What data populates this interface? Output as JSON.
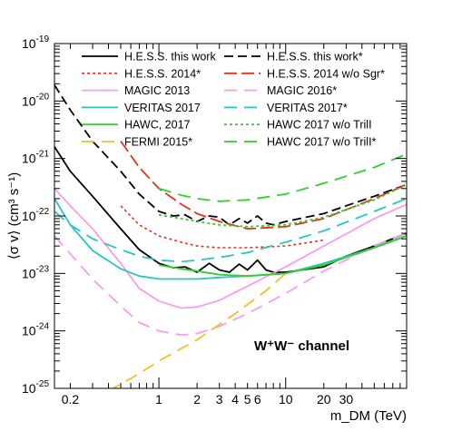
{
  "chart_data": {
    "type": "line",
    "title": "",
    "xlabel": "m_DM (TeV)",
    "ylabel": "⟨σ v⟩ (cm³ s⁻¹)",
    "x_scale": "log",
    "y_scale": "log",
    "xlim": [
      0.15,
      90
    ],
    "ylim": [
      1e-25,
      1e-19
    ],
    "grid": false,
    "legend_position": "top",
    "x_tick_labels": [
      {
        "value": 0.2,
        "label": "0.2"
      },
      {
        "value": 1,
        "label": "1"
      },
      {
        "value": 2,
        "label": "2"
      },
      {
        "value": 3,
        "label": "3"
      },
      {
        "value": 4,
        "label": "4"
      },
      {
        "value": 5,
        "label": "5"
      },
      {
        "value": 6,
        "label": "6"
      },
      {
        "value": 10,
        "label": "10"
      },
      {
        "value": 20,
        "label": "20"
      },
      {
        "value": 30,
        "label": "30"
      }
    ],
    "y_tick_labels": [
      {
        "value": 1e-25,
        "base": "10",
        "exp": "-25"
      },
      {
        "value": 1e-24,
        "base": "10",
        "exp": "-24"
      },
      {
        "value": 1e-23,
        "base": "10",
        "exp": "-23"
      },
      {
        "value": 1e-22,
        "base": "10",
        "exp": "-22"
      },
      {
        "value": 1e-21,
        "base": "10",
        "exp": "-21"
      },
      {
        "value": 1e-20,
        "base": "10",
        "exp": "-20"
      },
      {
        "value": 1e-19,
        "base": "10",
        "exp": "-19"
      }
    ],
    "annotation": "W⁺W⁻ channel",
    "series": [
      {
        "name": "H.E.S.S. this work",
        "color": "#000000",
        "dash": "solid",
        "width": 1.8,
        "points": [
          [
            0.15,
            1.6e-21
          ],
          [
            0.2,
            6e-22
          ],
          [
            0.3,
            2.2e-22
          ],
          [
            0.5,
            6e-23
          ],
          [
            0.7,
            2.6e-23
          ],
          [
            1,
            1.5e-23
          ],
          [
            1.3,
            1.25e-23
          ],
          [
            1.6,
            1.3e-23
          ],
          [
            2,
            1.05e-23
          ],
          [
            2.5,
            1.5e-23
          ],
          [
            3,
            1.15e-23
          ],
          [
            3.6,
            1.05e-23
          ],
          [
            4.3,
            1.45e-23
          ],
          [
            5,
            1.15e-23
          ],
          [
            6,
            1.7e-23
          ],
          [
            7,
            1.15e-23
          ],
          [
            8,
            1.05e-23
          ],
          [
            10,
            1.05e-23
          ],
          [
            20,
            1.3e-23
          ],
          [
            30,
            2e-23
          ],
          [
            50,
            3e-23
          ],
          [
            90,
            5e-23
          ]
        ]
      },
      {
        "name": "H.E.S.S. this work*",
        "color": "#000000",
        "dash": "10,5",
        "width": 1.8,
        "points": [
          [
            0.15,
            1.9e-20
          ],
          [
            0.2,
            7e-21
          ],
          [
            0.3,
            2e-21
          ],
          [
            0.5,
            6e-22
          ],
          [
            0.7,
            2.4e-22
          ],
          [
            1,
            1.2e-22
          ],
          [
            1.3,
            1e-22
          ],
          [
            1.6,
            1.05e-22
          ],
          [
            2,
            8e-23
          ],
          [
            2.5,
            1e-22
          ],
          [
            3,
            9.5e-23
          ],
          [
            3.6,
            7e-23
          ],
          [
            4.3,
            9e-23
          ],
          [
            5,
            7.5e-23
          ],
          [
            6,
            1e-22
          ],
          [
            7,
            7.5e-23
          ],
          [
            8,
            7e-23
          ],
          [
            10,
            8e-23
          ],
          [
            20,
            1.1e-22
          ],
          [
            30,
            1.5e-22
          ],
          [
            50,
            2.2e-22
          ],
          [
            90,
            3.5e-22
          ]
        ]
      },
      {
        "name": "H.E.S.S. 2014*",
        "color": "#e8301c",
        "dash": "3,3",
        "width": 1.6,
        "points": [
          [
            0.5,
            1.5e-22
          ],
          [
            0.7,
            7e-23
          ],
          [
            1,
            4.5e-23
          ],
          [
            1.5,
            3.5e-23
          ],
          [
            2,
            3e-23
          ],
          [
            3,
            2.8e-23
          ],
          [
            5,
            2.8e-23
          ],
          [
            10,
            3e-23
          ],
          [
            20,
            3.8e-23
          ]
        ]
      },
      {
        "name": "H.E.S.S. 2014 w/o Sgr*",
        "color": "#e8301c",
        "dash": "14,5",
        "width": 1.8,
        "points": [
          [
            0.5,
            2e-21
          ],
          [
            0.7,
            7e-22
          ],
          [
            1,
            3e-22
          ],
          [
            1.5,
            1.6e-22
          ],
          [
            2,
            1.1e-22
          ],
          [
            3,
            8e-23
          ],
          [
            5,
            6e-23
          ],
          [
            10,
            6.5e-23
          ],
          [
            20,
            9e-23
          ],
          [
            50,
            2e-22
          ],
          [
            90,
            3.5e-22
          ]
        ]
      },
      {
        "name": "MAGIC 2013",
        "color": "#f79cf0",
        "dash": "solid",
        "width": 1.8,
        "points": [
          [
            0.15,
            3e-22
          ],
          [
            0.2,
            1.5e-22
          ],
          [
            0.3,
            6e-23
          ],
          [
            0.5,
            1.5e-23
          ],
          [
            0.7,
            5.5e-24
          ],
          [
            1,
            3.3e-24
          ],
          [
            1.5,
            2.5e-24
          ],
          [
            2,
            2.6e-24
          ],
          [
            3,
            3.4e-24
          ],
          [
            5,
            6e-24
          ],
          [
            10,
            1.3e-23
          ],
          [
            20,
            3e-23
          ],
          [
            50,
            9e-23
          ],
          [
            90,
            1.6e-22
          ]
        ]
      },
      {
        "name": "MAGIC 2016*",
        "color": "#f79cf0",
        "dash": "14,8",
        "width": 1.8,
        "points": [
          [
            0.15,
            4.5e-23
          ],
          [
            0.2,
            2.2e-23
          ],
          [
            0.3,
            8e-24
          ],
          [
            0.5,
            2.7e-24
          ],
          [
            0.7,
            1.4e-24
          ],
          [
            1,
            1e-24
          ],
          [
            1.5,
            8.5e-25
          ],
          [
            2,
            9e-25
          ],
          [
            3,
            1.2e-24
          ],
          [
            5,
            2e-24
          ],
          [
            10,
            4.5e-24
          ],
          [
            20,
            1.1e-23
          ],
          [
            50,
            3e-23
          ],
          [
            90,
            5e-23
          ]
        ]
      },
      {
        "name": "VERITAS 2017",
        "color": "#29c4c4",
        "dash": "solid",
        "width": 1.8,
        "points": [
          [
            0.15,
            2e-22
          ],
          [
            0.2,
            7e-23
          ],
          [
            0.3,
            2.5e-23
          ],
          [
            0.5,
            1.2e-23
          ],
          [
            0.7,
            9e-24
          ],
          [
            1,
            8e-24
          ],
          [
            2,
            8e-24
          ],
          [
            3,
            8.5e-24
          ],
          [
            5,
            9e-24
          ],
          [
            10,
            1e-23
          ],
          [
            20,
            1.5e-23
          ],
          [
            50,
            2.8e-23
          ],
          [
            90,
            4.5e-23
          ]
        ]
      },
      {
        "name": "VERITAS 2017*",
        "color": "#29c4c4",
        "dash": "14,8",
        "width": 1.8,
        "points": [
          [
            0.15,
            1.2e-22
          ],
          [
            0.2,
            7e-23
          ],
          [
            0.3,
            4e-23
          ],
          [
            0.5,
            2.6e-23
          ],
          [
            0.7,
            2e-23
          ],
          [
            1,
            1.7e-23
          ],
          [
            1.5,
            1.6e-23
          ],
          [
            2,
            1.7e-23
          ],
          [
            3,
            1.9e-23
          ],
          [
            5,
            2.3e-23
          ],
          [
            10,
            3.5e-23
          ],
          [
            20,
            5.5e-23
          ],
          [
            50,
            1.2e-22
          ],
          [
            90,
            2e-22
          ]
        ]
      },
      {
        "name": "HAWC, 2017",
        "color": "#2ed12e",
        "dash": "solid",
        "width": 1.8,
        "points": [
          [
            1,
            1.4e-23
          ],
          [
            1.5,
            1.2e-23
          ],
          [
            2,
            1.1e-23
          ],
          [
            3,
            9.5e-24
          ],
          [
            5,
            9e-24
          ],
          [
            10,
            1e-23
          ],
          [
            20,
            1.4e-23
          ],
          [
            50,
            2.8e-23
          ],
          [
            90,
            4.5e-23
          ]
        ]
      },
      {
        "name": "HAWC 2017 w/o TrilI",
        "color": "#2ed12e",
        "dash": "3,3",
        "width": 1.8,
        "points": [
          [
            1,
            1.05e-22
          ],
          [
            1.5,
            9e-23
          ],
          [
            2,
            8e-23
          ],
          [
            3,
            7e-23
          ],
          [
            5,
            6.5e-23
          ],
          [
            10,
            7e-23
          ],
          [
            20,
            9.5e-23
          ],
          [
            50,
            1.9e-22
          ],
          [
            90,
            3.5e-22
          ]
        ]
      },
      {
        "name": "HAWC 2017 w/o TrilI*",
        "color": "#2ed12e",
        "dash": "14,8",
        "width": 1.8,
        "points": [
          [
            1,
            3e-22
          ],
          [
            1.5,
            2.3e-22
          ],
          [
            2,
            2e-22
          ],
          [
            3,
            1.8e-22
          ],
          [
            5,
            1.9e-22
          ],
          [
            10,
            2.4e-22
          ],
          [
            20,
            3.7e-22
          ],
          [
            50,
            7e-22
          ],
          [
            90,
            1.2e-21
          ]
        ]
      },
      {
        "name": "FERMI 2015*",
        "color": "#f0c020",
        "dash": "14,8",
        "width": 1.8,
        "points": [
          [
            0.4,
            9e-26
          ],
          [
            0.7,
            1.8e-25
          ],
          [
            1,
            3e-25
          ],
          [
            2,
            7e-25
          ],
          [
            4,
            2e-24
          ],
          [
            7,
            5e-24
          ],
          [
            10,
            1e-23
          ]
        ]
      }
    ]
  }
}
